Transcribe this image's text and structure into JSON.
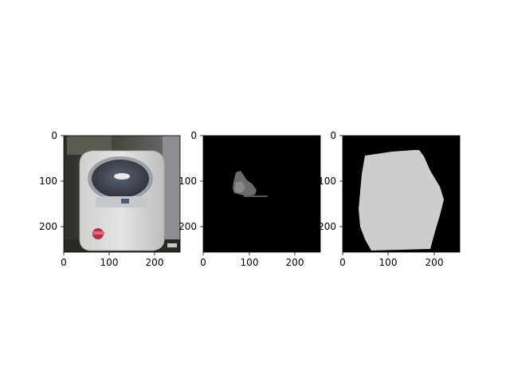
{
  "panels": [
    {
      "kind": "photo",
      "content": "washing-machine",
      "colors": {
        "background": "#3a3a34",
        "body": "#d8d8d6",
        "lid_dark": "#3e4350",
        "control_panel": "#c7c8cc",
        "badge": "#b0304a"
      },
      "x_ticks": [
        "0",
        "100",
        "200"
      ],
      "y_ticks": [
        "0",
        "100",
        "200"
      ]
    },
    {
      "kind": "mask",
      "content": "small-segment-mask",
      "colors": {
        "background": "#000000",
        "segment": "#6b6b6b",
        "segment_light": "#8a8a8a"
      },
      "x_ticks": [
        "0",
        "100",
        "200"
      ],
      "y_ticks": [
        "0",
        "100",
        "200"
      ]
    },
    {
      "kind": "mask",
      "content": "large-segment-mask",
      "colors": {
        "background": "#000000",
        "segment": "#cdcdcd"
      },
      "x_ticks": [
        "0",
        "100",
        "200"
      ],
      "y_ticks": [
        "0",
        "100",
        "200"
      ]
    }
  ]
}
